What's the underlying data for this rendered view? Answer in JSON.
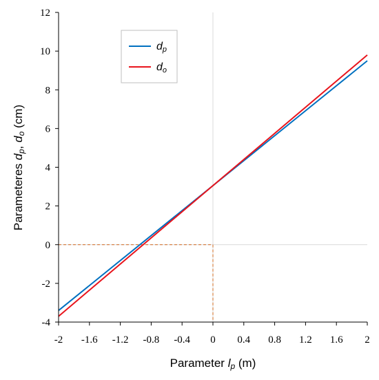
{
  "chart_data": {
    "type": "line",
    "xlabel": {
      "prefix": "Parameter ",
      "var": "l",
      "sub": "p",
      "suffix": " (m)"
    },
    "ylabel": {
      "prefix": "Parameteres ",
      "var1": "d",
      "sub1": "p",
      "sep": ", ",
      "var2": "d",
      "sub2": "o",
      "suffix": " (cm)"
    },
    "xlim": [
      -2,
      2
    ],
    "ylim": [
      -4,
      12
    ],
    "xticks": [
      -2,
      -1.6,
      -1.2,
      -0.8,
      -0.4,
      0,
      0.4,
      0.8,
      1.2,
      1.6,
      2
    ],
    "xtick_labels": [
      "-2",
      "-1.6",
      "-1.2",
      "-0.8",
      "-0.4",
      "0",
      "0.4",
      "0.8",
      "1.2",
      "1.6",
      "2"
    ],
    "yticks": [
      -4,
      -2,
      0,
      2,
      4,
      6,
      8,
      10,
      12
    ],
    "ytick_labels": [
      "-4",
      "-2",
      "0",
      "2",
      "4",
      "6",
      "8",
      "10",
      "12"
    ],
    "grid": {
      "x": [
        0
      ],
      "y": [
        0
      ]
    },
    "legend_position": "top-left",
    "series": [
      {
        "name": "dp",
        "legend_var": "d",
        "legend_sub": "p",
        "color": "#0070c0",
        "x": [
          -2,
          2
        ],
        "y": [
          -3.4,
          9.5
        ]
      },
      {
        "name": "do",
        "legend_var": "d",
        "legend_sub": "o",
        "color": "#e8141c",
        "x": [
          -2,
          2
        ],
        "y": [
          -3.7,
          9.8
        ]
      }
    ],
    "guides": {
      "color": "#d2691e",
      "x": 0,
      "y": 0
    }
  }
}
